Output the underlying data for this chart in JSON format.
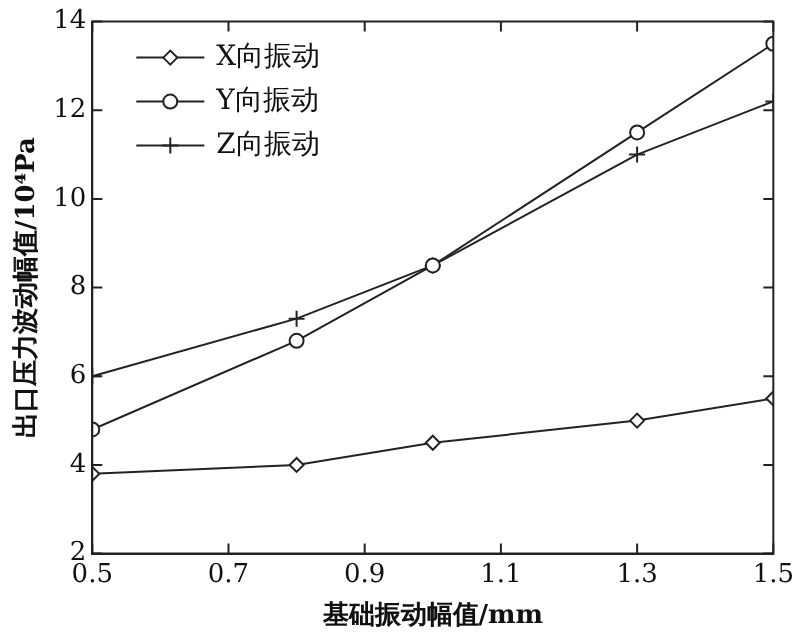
{
  "chart_data": {
    "type": "line",
    "xlabel": "基础振动幅值/mm",
    "ylabel": "出口压力波动幅值/10⁴Pa",
    "x": [
      0.5,
      0.8,
      1.0,
      1.3,
      1.5
    ],
    "series": [
      {
        "name": "X向振动",
        "color": "#222222",
        "marker": "diamond",
        "values": [
          3.8,
          4.0,
          4.5,
          5.0,
          5.5
        ]
      },
      {
        "name": "Y向振动",
        "color": "#222222",
        "marker": "circle",
        "values": [
          4.8,
          6.8,
          8.5,
          11.5,
          13.5
        ]
      },
      {
        "name": "Z向振动",
        "color": "#222222",
        "marker": "cross",
        "values": [
          6.0,
          7.3,
          8.5,
          11.0,
          12.2
        ]
      }
    ],
    "xlim": [
      0.5,
      1.5
    ],
    "xticks": [
      0.5,
      0.7,
      0.9,
      1.1,
      1.3,
      1.5
    ],
    "ylim": [
      2,
      14
    ],
    "yticks": [
      2,
      4,
      6,
      8,
      10,
      12,
      14
    ],
    "grid": false,
    "legend": "top left",
    "line_style": "solid"
  }
}
